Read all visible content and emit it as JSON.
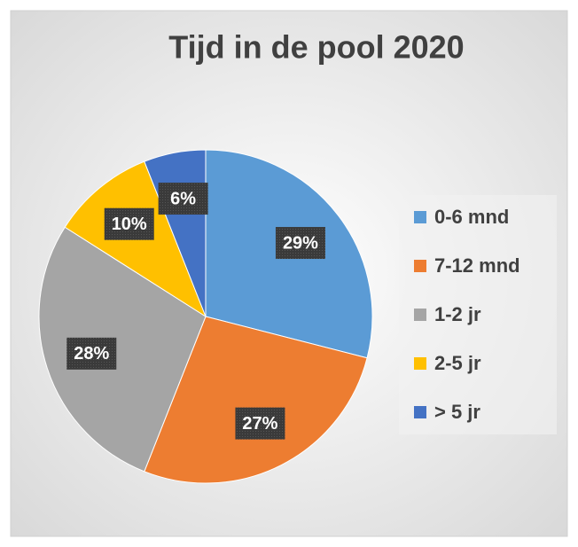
{
  "chart_data": {
    "type": "pie",
    "title": "Tijd in de pool 2020",
    "categories": [
      "0-6 mnd",
      "7-12 mnd",
      "1-2 jr",
      "2-5 jr",
      "> 5 jr"
    ],
    "values": [
      29,
      27,
      28,
      10,
      6
    ],
    "value_labels": [
      "29%",
      "27%",
      "28%",
      "10%",
      "6%"
    ],
    "colors": [
      "#5b9bd5",
      "#ed7d31",
      "#a5a5a5",
      "#ffc000",
      "#4472c4"
    ],
    "legend": "right"
  }
}
